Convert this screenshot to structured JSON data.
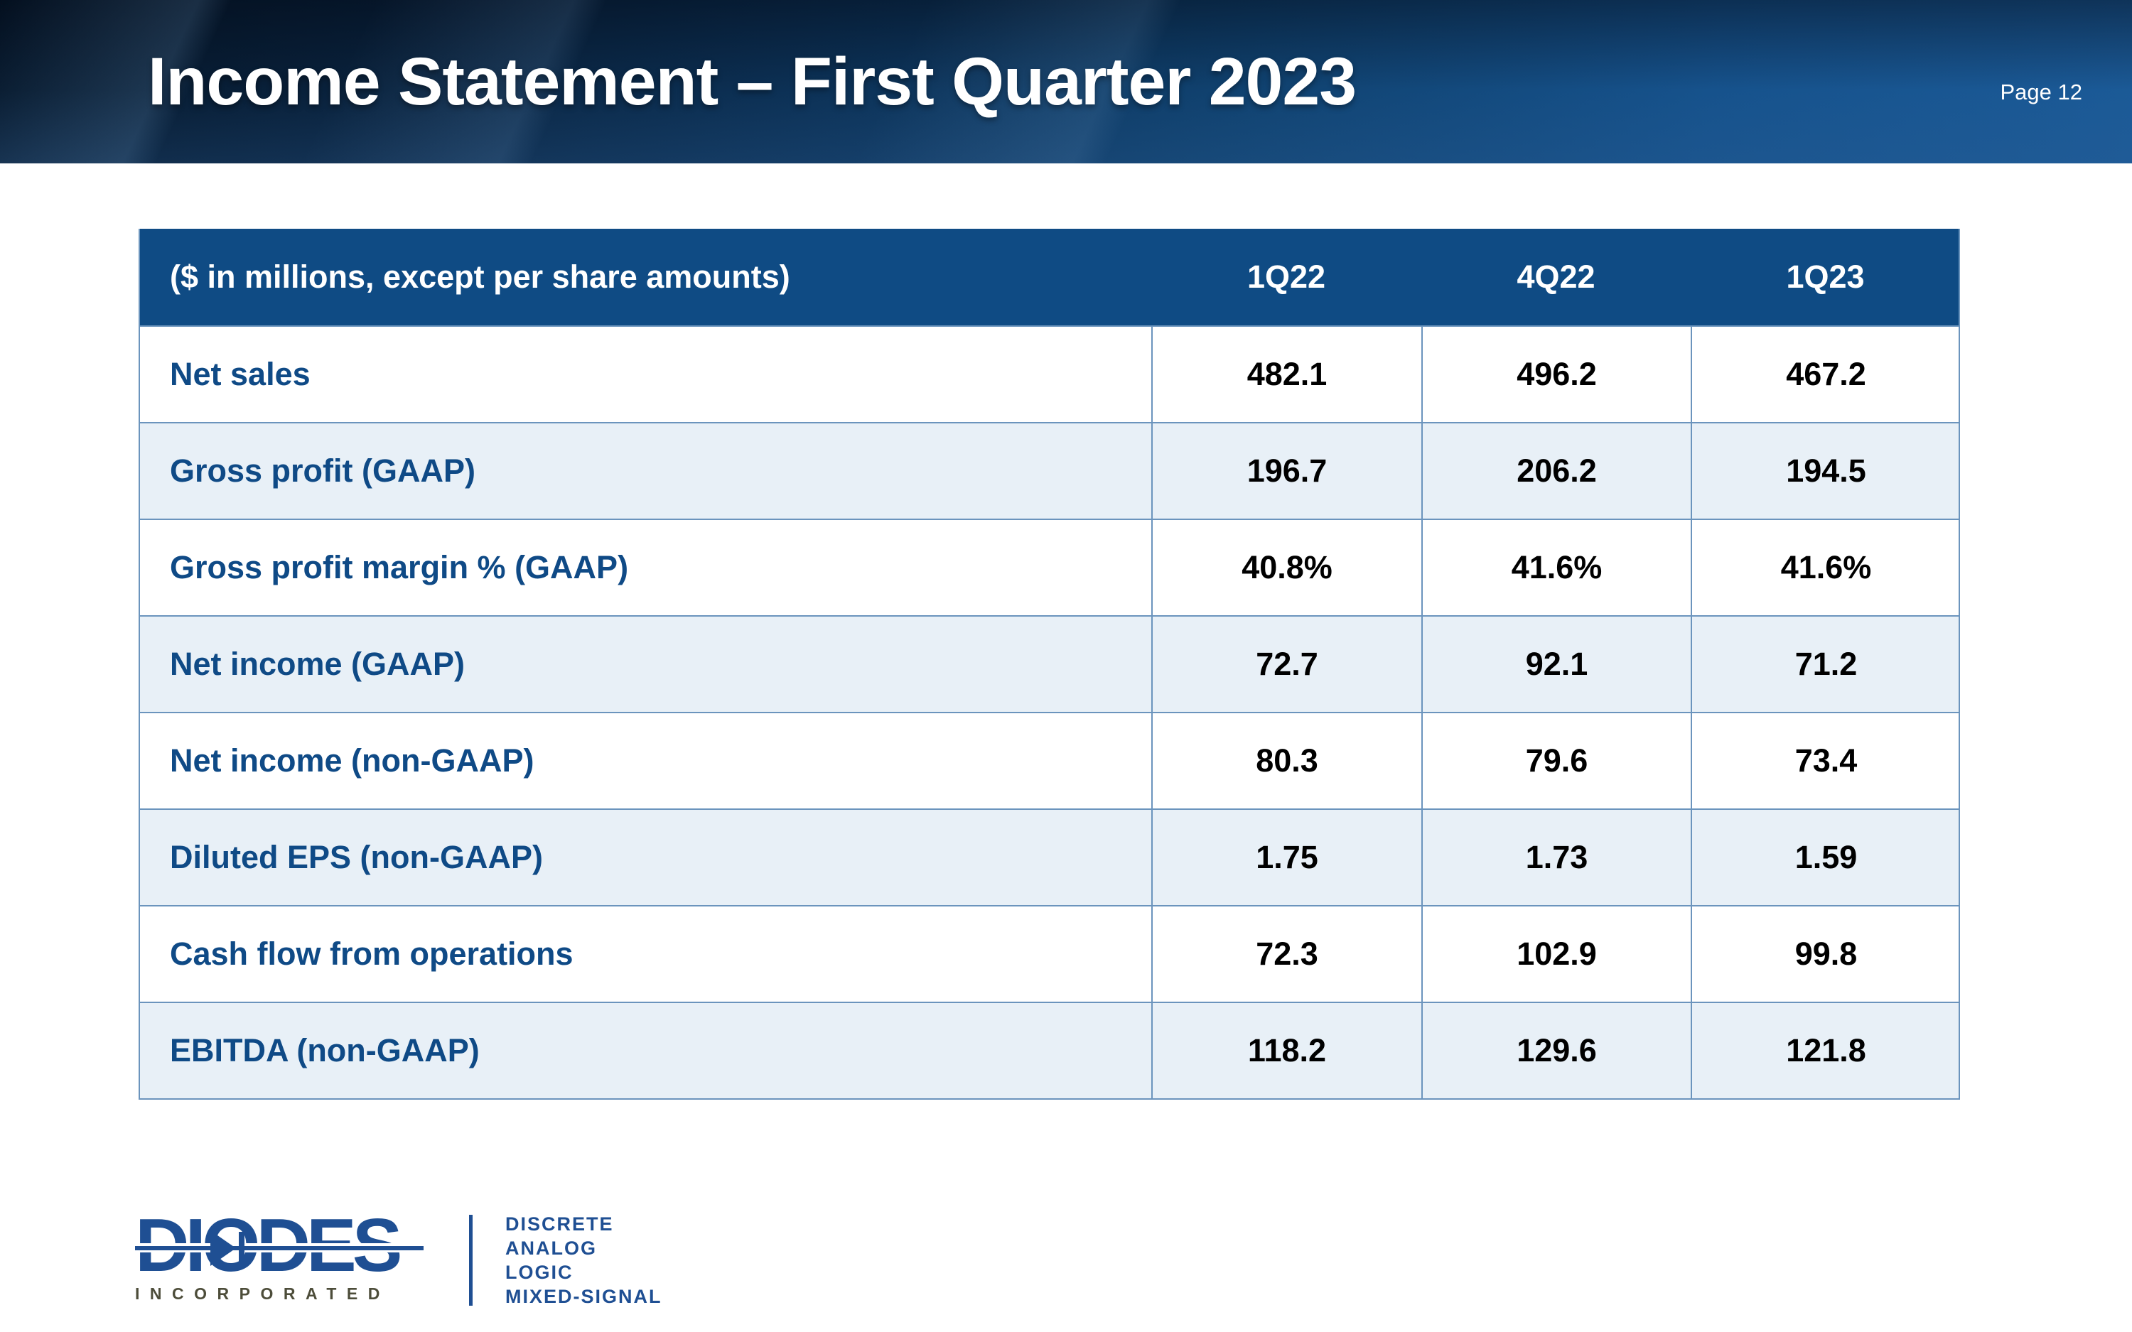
{
  "slide": {
    "title": "Income Statement – First Quarter 2023",
    "page_label": "Page 12"
  },
  "table": {
    "header": {
      "label": "($ in millions, except per share amounts)",
      "columns": [
        "1Q22",
        "4Q22",
        "1Q23"
      ]
    },
    "rows": [
      {
        "label": "Net sales",
        "values": [
          "482.1",
          "496.2",
          "467.2"
        ]
      },
      {
        "label": "Gross profit (GAAP)",
        "values": [
          "196.7",
          "206.2",
          "194.5"
        ]
      },
      {
        "label": "Gross profit margin % (GAAP)",
        "values": [
          "40.8%",
          "41.6%",
          "41.6%"
        ]
      },
      {
        "label": "Net income (GAAP)",
        "values": [
          "72.7",
          "92.1",
          "71.2"
        ]
      },
      {
        "label": "Net income (non-GAAP)",
        "values": [
          "80.3",
          "79.6",
          "73.4"
        ]
      },
      {
        "label": "Diluted EPS (non-GAAP)",
        "values": [
          "1.75",
          "1.73",
          "1.59"
        ]
      },
      {
        "label": "Cash flow from operations",
        "values": [
          "72.3",
          "102.9",
          "99.8"
        ]
      },
      {
        "label": "EBITDA (non-GAAP)",
        "values": [
          "118.2",
          "129.6",
          "121.8"
        ]
      }
    ]
  },
  "footer": {
    "logo_text": "DIODES",
    "logo_sub": "INCORPORATED",
    "tagline_lines": [
      "DISCRETE",
      "ANALOG",
      "LOGIC",
      "MIXED-SIGNAL"
    ]
  },
  "colors": {
    "table_header_bg": "#0f4b84",
    "row_alt_bg": "#e8f0f7",
    "row_label_text": "#0f4a86",
    "table_border": "#6b94bd",
    "banner_right_blue": "#1b5a97",
    "banner_dark_navy": "#06182c",
    "logo_blue": "#1f4f93",
    "incorporated_olive": "#4d4d3a"
  }
}
